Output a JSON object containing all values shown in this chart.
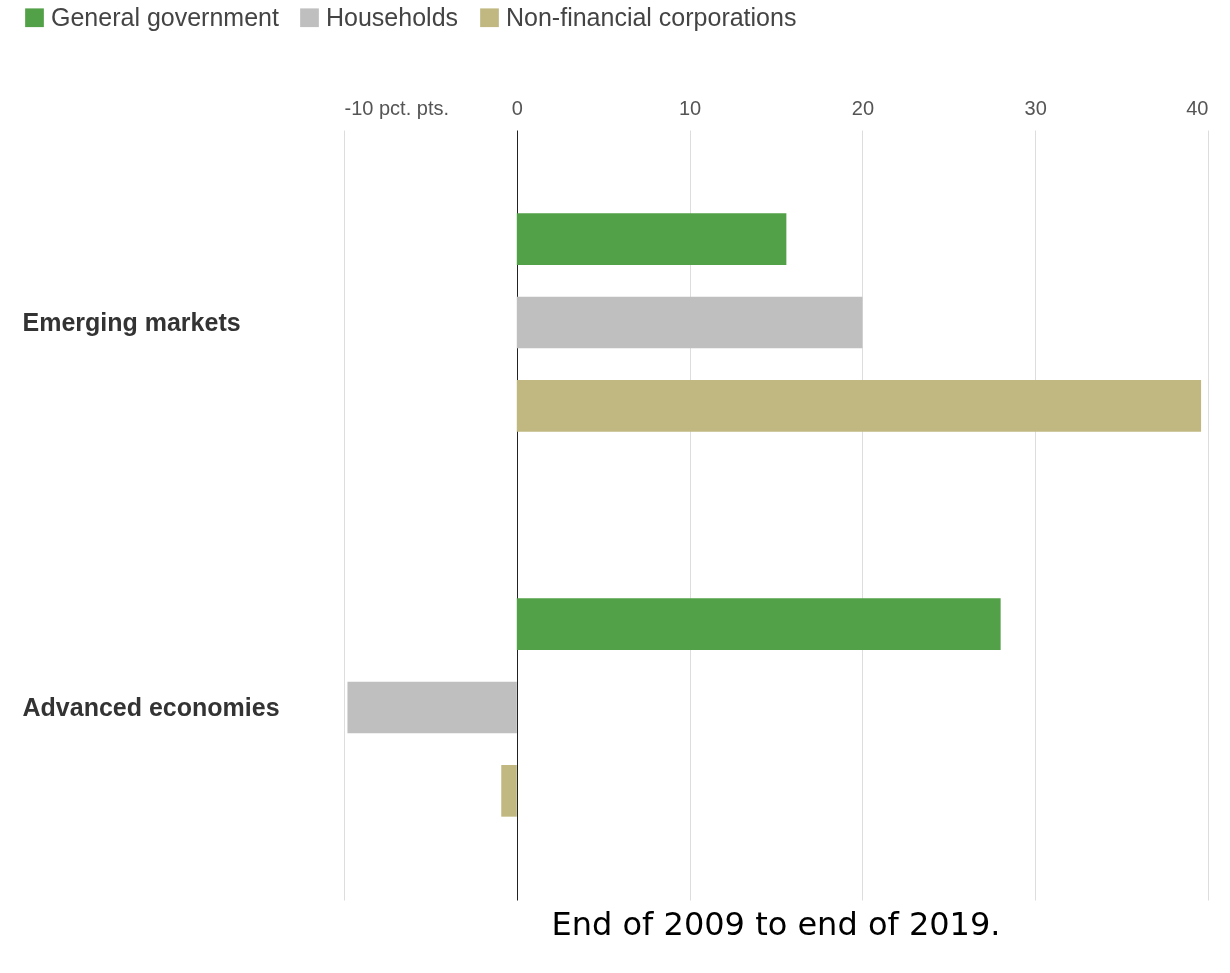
{
  "chart_data": {
    "type": "bar",
    "orientation": "horizontal",
    "categories": [
      "Emerging markets",
      "Advanced economies"
    ],
    "series": [
      {
        "name": "General government",
        "color": "#52a047",
        "values": [
          15.6,
          28.0
        ]
      },
      {
        "name": "Households",
        "color": "#bfbfbf",
        "values": [
          20.0,
          -9.8
        ]
      },
      {
        "name": "Non-financial corporations",
        "color": "#c0b880",
        "values": [
          39.6,
          -0.9
        ]
      }
    ],
    "xlim": [
      -10,
      40
    ],
    "xticks": [
      {
        "value": -10,
        "label": "-10 pct. pts."
      },
      0,
      10,
      20,
      30,
      40
    ],
    "grid": "x",
    "legend": "top left",
    "annotations": [
      "End of 2009 to end of 2019."
    ]
  }
}
